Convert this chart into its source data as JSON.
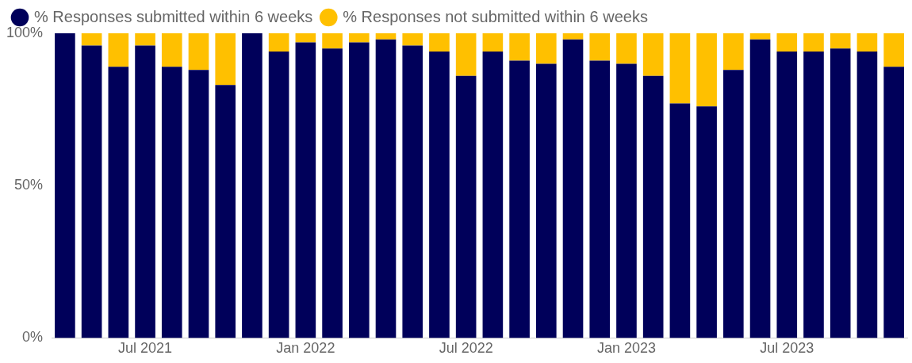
{
  "chart_data": {
    "type": "bar",
    "stacked": true,
    "categories": [
      null,
      null,
      null,
      "Jul 2021",
      null,
      null,
      null,
      null,
      null,
      "Jan 2022",
      null,
      null,
      null,
      null,
      null,
      "Jul 2022",
      null,
      null,
      null,
      null,
      null,
      "Jan 2023",
      null,
      null,
      null,
      null,
      null,
      "Jul 2023",
      null,
      null,
      null,
      null
    ],
    "series": [
      {
        "name": "% Responses submitted within 6 weeks",
        "color": "#00005a",
        "values": [
          100,
          96,
          89,
          96,
          89,
          88,
          83,
          100,
          94,
          97,
          95,
          97,
          98,
          96,
          94,
          86,
          94,
          91,
          90,
          98,
          91,
          90,
          86,
          77,
          76,
          88,
          98,
          94,
          94,
          95,
          94,
          89
        ]
      },
      {
        "name": "% Responses not submitted within 6 weeks",
        "color": "#ffc000",
        "values": [
          0,
          4,
          11,
          4,
          11,
          12,
          17,
          0,
          6,
          3,
          5,
          3,
          2,
          4,
          6,
          14,
          6,
          9,
          10,
          2,
          9,
          10,
          14,
          23,
          24,
          12,
          2,
          6,
          6,
          5,
          6,
          11
        ]
      }
    ],
    "ylim": [
      0,
      100
    ],
    "yticks": [
      {
        "value": 0,
        "label": "0%"
      },
      {
        "value": 50,
        "label": "50%"
      },
      {
        "value": 100,
        "label": "100%"
      }
    ],
    "legend": "top left",
    "grid": false
  }
}
